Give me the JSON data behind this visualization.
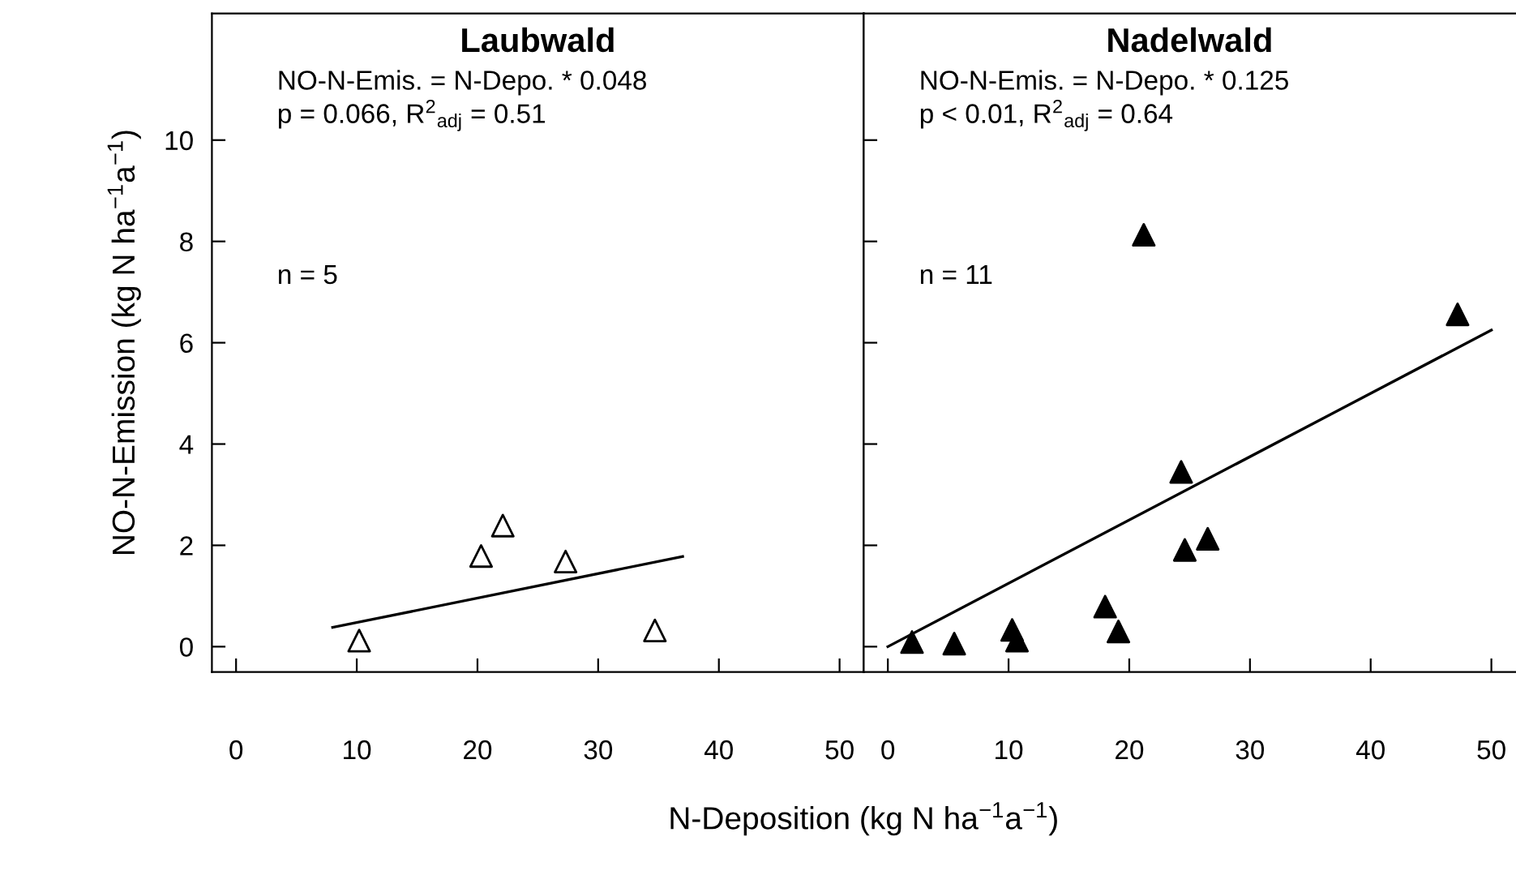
{
  "chart_data": [
    {
      "type": "scatter",
      "title": "Laubwald",
      "ylabel": "NO-N-Emission (kg N ha$^{−1}$a$^{−1}$)",
      "xlabel": "N-Deposition (kg N ha$^{−1}$a$^{−1}$)",
      "xlim": [
        -2,
        52
      ],
      "xticks": [
        0,
        10,
        20,
        30,
        40,
        50
      ],
      "ylim": [
        -0.5,
        12.5
      ],
      "yticks": [
        0,
        2,
        4,
        6,
        8,
        10
      ],
      "grid": false,
      "legend": false,
      "annotations": [
        "NO-N-Emis. = N-Depo. * 0.048",
        "p = 0.066, R$^{2}$$_{adj}$ = 0.51",
        "n = 5"
      ],
      "series": [
        {
          "color": "#ffffff",
          "marker": "triangle",
          "x": [
            10.2,
            20.3,
            22.1,
            27.3,
            34.7
          ],
          "values": [
            0.12,
            1.79,
            2.39,
            1.68,
            0.32
          ]
        },
        {
          "type": "line",
          "color": "#000000",
          "marker": "none",
          "line_style": "solid",
          "x": [
            8.0,
            37.0
          ],
          "values": [
            0.38,
            1.78
          ]
        }
      ]
    },
    {
      "type": "scatter",
      "title": "Nadelwald",
      "tick_labels": "x",
      "xlim": [
        -2,
        52
      ],
      "xticks": [
        0,
        10,
        20,
        30,
        40,
        50
      ],
      "ylim": [
        -0.5,
        12.5
      ],
      "yticks": [
        0,
        2,
        4,
        6,
        8,
        10
      ],
      "grid": false,
      "legend": false,
      "annotations": [
        "NO-N-Emis. = N-Depo. * 0.125",
        "p < 0.01, R$^{2}$$_{adj}$ = 0.64",
        "n = 11"
      ],
      "series": [
        {
          "color": "#000000",
          "marker": "triangle",
          "x": [
            2.0,
            5.5,
            10.3,
            10.7,
            18.0,
            19.1,
            21.2,
            24.3,
            24.6,
            26.5,
            47.2
          ],
          "values": [
            0.09,
            0.06,
            0.33,
            0.12,
            0.79,
            0.3,
            8.13,
            3.45,
            1.91,
            2.13,
            6.56
          ]
        },
        {
          "type": "line",
          "color": "#000000",
          "marker": "none",
          "line_style": "solid",
          "x": [
            0,
            50
          ],
          "values": [
            0,
            6.25
          ]
        }
      ]
    }
  ]
}
